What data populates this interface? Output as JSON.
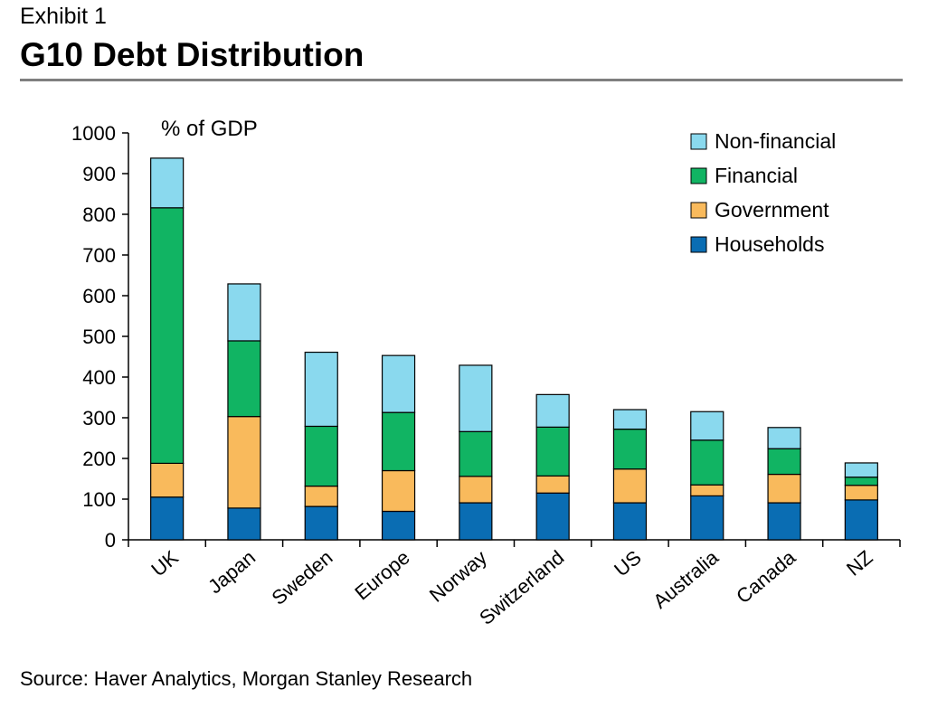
{
  "header": {
    "exhibit": "Exhibit 1",
    "title": "G10 Debt Distribution",
    "source": "Source: Haver Analytics, Morgan Stanley Research"
  },
  "chart_data": {
    "type": "bar",
    "stacked": true,
    "unit_label": "% of GDP",
    "ylim": [
      0,
      1000
    ],
    "yticks": [
      0,
      100,
      200,
      300,
      400,
      500,
      600,
      700,
      800,
      900,
      1000
    ],
    "grid": false,
    "legend_position": "top-right",
    "categories": [
      "UK",
      "Japan",
      "Sweden",
      "Europe",
      "Norway",
      "Switzerland",
      "US",
      "Australia",
      "Canada",
      "NZ"
    ],
    "series": [
      {
        "name": "Households",
        "color": "#0a6db3",
        "values": [
          105,
          78,
          82,
          70,
          91,
          115,
          91,
          108,
          91,
          98
        ]
      },
      {
        "name": "Government",
        "color": "#f9ba5c",
        "values": [
          83,
          225,
          50,
          100,
          65,
          42,
          83,
          27,
          70,
          36
        ]
      },
      {
        "name": "Financial",
        "color": "#11b463",
        "values": [
          628,
          186,
          147,
          143,
          110,
          120,
          98,
          110,
          63,
          20
        ]
      },
      {
        "name": "Non-financial",
        "color": "#8ad9ee",
        "values": [
          122,
          140,
          182,
          140,
          163,
          80,
          48,
          70,
          52,
          35
        ]
      }
    ],
    "legend_order": [
      "Non-financial",
      "Financial",
      "Government",
      "Households"
    ]
  }
}
